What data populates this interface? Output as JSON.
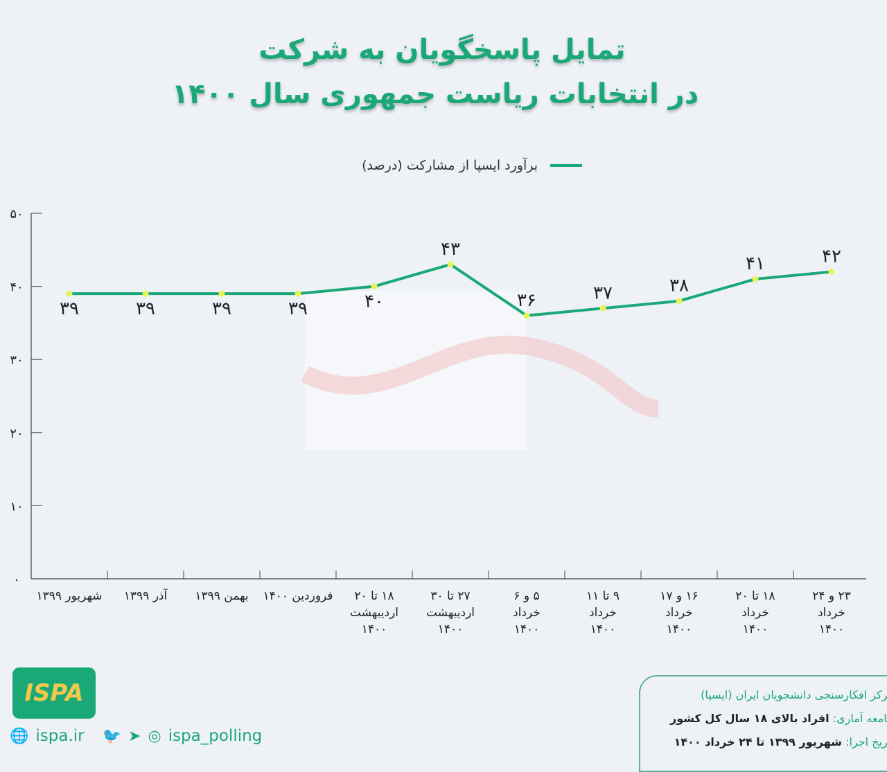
{
  "title": {
    "line1": "تمایل پاسخگویان به شرکت",
    "line2": "در انتخابات ریاست جمهوری سال ۱۴۰۰"
  },
  "chart_data": {
    "type": "line",
    "title": "تمایل پاسخگویان به شرکت در انتخابات ریاست جمهوری سال ۱۴۰۰",
    "categories": [
      "شهریور ۱۳۹۹",
      "آذر ۱۳۹۹",
      "بهمن ۱۳۹۹",
      "فروردین ۱۴۰۰",
      "۱۸ تا ۲۰ اردیبهشت ۱۴۰۰",
      "۲۷ تا ۳۰ اردیبهشت ۱۴۰۰",
      "۵ و ۶ خرداد ۱۴۰۰",
      "۹ تا ۱۱ خرداد ۱۴۰۰",
      "۱۶ و ۱۷ خرداد ۱۴۰۰",
      "۱۸ تا ۲۰ خرداد ۱۴۰۰",
      "۲۳ و ۲۴ خرداد ۱۴۰۰"
    ],
    "category_lines": [
      [
        "شهریور ۱۳۹۹"
      ],
      [
        "آذر ۱۳۹۹"
      ],
      [
        "بهمن ۱۳۹۹"
      ],
      [
        "فروردین ۱۴۰۰"
      ],
      [
        "۱۸ تا ۲۰",
        "اردیبهشت",
        "۱۴۰۰"
      ],
      [
        "۲۷ تا ۳۰",
        "اردیبهشت",
        "۱۴۰۰"
      ],
      [
        "۵ و ۶",
        "خرداد",
        "۱۴۰۰"
      ],
      [
        "۹ تا ۱۱",
        "خرداد",
        "۱۴۰۰"
      ],
      [
        "۱۶ و ۱۷",
        "خرداد",
        "۱۴۰۰"
      ],
      [
        "۱۸ تا ۲۰",
        "خرداد",
        "۱۴۰۰"
      ],
      [
        "۲۳ و ۲۴",
        "خرداد",
        "۱۴۰۰"
      ]
    ],
    "series": [
      {
        "name": "برآورد ایسپا از مشارکت (درصد)",
        "values": [
          39,
          39,
          39,
          39,
          40,
          43,
          36,
          37,
          38,
          41,
          42
        ],
        "data_labels": [
          "۳۹",
          "۳۹",
          "۳۹",
          "۳۹",
          "۴۰",
          "۴۳",
          "۳۶",
          "۳۷",
          "۳۸",
          "۴۱",
          "۴۲"
        ],
        "color": "#1aa876",
        "marker_color": "#e8f55a"
      }
    ],
    "ylim": [
      0,
      50
    ],
    "yticks": [
      0,
      10,
      20,
      30,
      40,
      50
    ],
    "ytick_labels": [
      "۰",
      "۱۰",
      "۲۰",
      "۳۰",
      "۴۰",
      "۵۰"
    ],
    "legend": "top-center",
    "grid": false
  },
  "footer": {
    "org": "مرکز افکارسنجی دانشجویان ایران (ایسپا)",
    "population_key": "جامعه آماری:",
    "population_val": "افراد بالای ۱۸ سال کل کشور",
    "date_key": "تاریخ اجرا:",
    "date_val": "شهریور ۱۳۹۹ تا ۲۴ خرداد ۱۴۰۰",
    "website": "ispa.ir",
    "handle": "ispa_polling",
    "logo_text": "ISPA"
  },
  "colors": {
    "accent": "#1aa876",
    "background": "#eef2f7"
  }
}
